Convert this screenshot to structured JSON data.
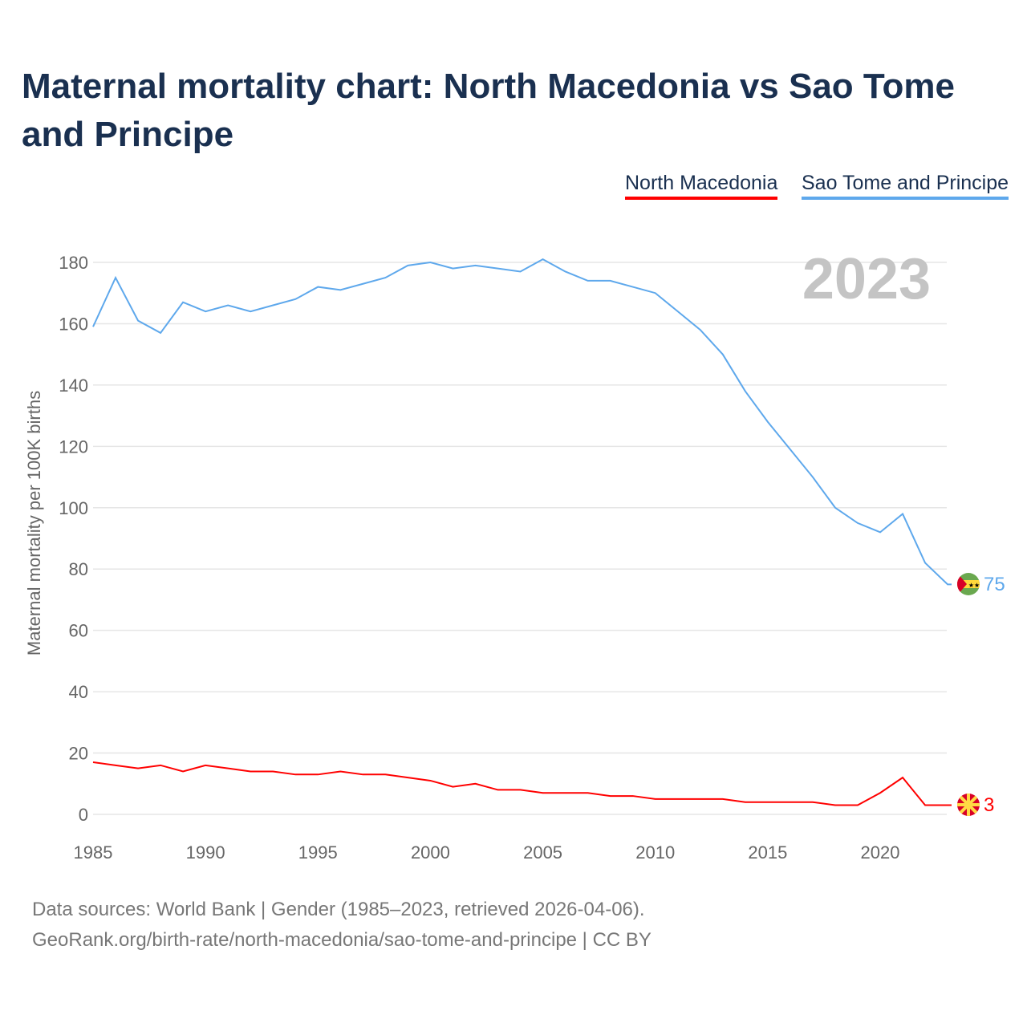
{
  "title": "Maternal mortality chart: North Macedonia vs Sao Tome and Principe",
  "legend": [
    "North Macedonia",
    "Sao Tome and Principe"
  ],
  "footer": {
    "line1": "Data sources: World Bank | Gender (1985–2023, retrieved 2026-04-06).",
    "line2": "GeoRank.org/birth-rate/north-macedonia/sao-tome-and-principe | CC BY"
  },
  "chart_data": {
    "type": "line",
    "title": "Maternal mortality chart: North Macedonia vs Sao Tome and Principe",
    "ylabel": "Maternal mortality per 100K births",
    "xlabel": "",
    "year_label": "2023",
    "xlim": [
      1985,
      2023
    ],
    "ylim": [
      0,
      190
    ],
    "xticks": [
      "1985",
      "1990",
      "1995",
      "2000",
      "2005",
      "2010",
      "2015",
      "2020"
    ],
    "yticks": [
      "0",
      "20",
      "40",
      "60",
      "80",
      "100",
      "120",
      "140",
      "160",
      "180"
    ],
    "grid": true,
    "legend_position": "top-right",
    "x": [
      1985,
      1986,
      1987,
      1988,
      1989,
      1990,
      1991,
      1992,
      1993,
      1994,
      1995,
      1996,
      1997,
      1998,
      1999,
      2000,
      2001,
      2002,
      2003,
      2004,
      2005,
      2006,
      2007,
      2008,
      2009,
      2010,
      2011,
      2012,
      2013,
      2014,
      2015,
      2016,
      2017,
      2018,
      2019,
      2020,
      2021,
      2022,
      2023
    ],
    "series": [
      {
        "name": "North Macedonia",
        "color": "#ff0000",
        "end_label": "3",
        "values": [
          17,
          16,
          15,
          16,
          14,
          16,
          15,
          14,
          14,
          13,
          13,
          14,
          13,
          13,
          12,
          11,
          9,
          10,
          8,
          8,
          7,
          7,
          7,
          6,
          6,
          5,
          5,
          5,
          5,
          4,
          4,
          4,
          4,
          3,
          3,
          7,
          12,
          3,
          3
        ]
      },
      {
        "name": "Sao Tome and Principe",
        "color": "#5ea8ec",
        "end_label": "75",
        "values": [
          159,
          175,
          161,
          157,
          167,
          164,
          166,
          164,
          166,
          168,
          172,
          171,
          173,
          175,
          179,
          180,
          178,
          179,
          178,
          177,
          181,
          177,
          174,
          174,
          172,
          170,
          164,
          158,
          150,
          138,
          128,
          119,
          110,
          100,
          95,
          92,
          98,
          82,
          75
        ]
      }
    ]
  }
}
